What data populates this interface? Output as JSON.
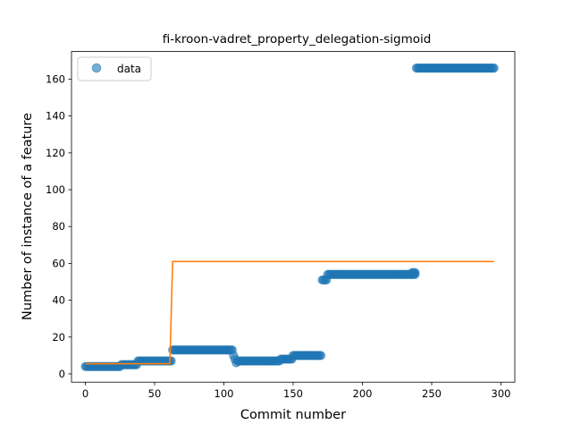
{
  "chart_data": {
    "type": "scatter",
    "title": "fi-kroon-vadret_property_delegation-sigmoid",
    "xlabel": "Commit number",
    "ylabel": "Number of instance of a feature",
    "xlim": [
      -10,
      310
    ],
    "ylim": [
      -4.5,
      175
    ],
    "x_ticks": [
      0,
      50,
      100,
      150,
      200,
      250,
      300
    ],
    "y_ticks": [
      0,
      20,
      40,
      60,
      80,
      100,
      120,
      140,
      160
    ],
    "legend": {
      "position": "top-left",
      "entries": [
        {
          "label": "data"
        }
      ]
    },
    "colors": {
      "data": "#1f77b4",
      "fit": "#ff7f0e"
    },
    "series": [
      {
        "name": "data",
        "kind": "scatter",
        "segments": [
          {
            "x_start": 0,
            "x_end": 25,
            "y": 4
          },
          {
            "x_start": 26,
            "x_end": 37,
            "y": 5
          },
          {
            "x_start": 38,
            "x_end": 62,
            "y": 7
          },
          {
            "x_start": 63,
            "x_end": 106,
            "y": 13
          },
          {
            "x_start": 107,
            "x_end": 107,
            "y": 10
          },
          {
            "x_start": 108,
            "x_end": 108,
            "y": 8
          },
          {
            "x_start": 109,
            "x_end": 109,
            "y": 6
          },
          {
            "x_start": 110,
            "x_end": 140,
            "y": 7
          },
          {
            "x_start": 141,
            "x_end": 149,
            "y": 8
          },
          {
            "x_start": 150,
            "x_end": 170,
            "y": 10
          },
          {
            "x_start": 171,
            "x_end": 174,
            "y": 51
          },
          {
            "x_start": 175,
            "x_end": 238,
            "y": 54
          },
          {
            "x_start": 236,
            "x_end": 238,
            "y": 55
          },
          {
            "x_start": 239,
            "x_end": 295,
            "y": 166
          }
        ]
      },
      {
        "kind": "line",
        "points": [
          [
            0,
            5.5
          ],
          [
            61,
            5.5
          ],
          [
            63,
            61
          ],
          [
            295,
            61
          ]
        ]
      }
    ]
  }
}
